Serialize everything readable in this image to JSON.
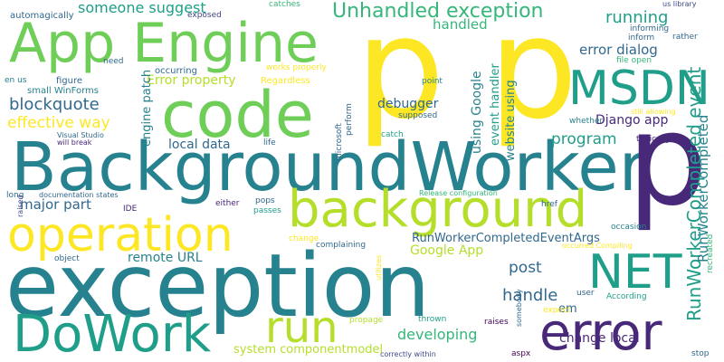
{
  "palette": {
    "yellow": "#fde725",
    "lime": "#b5de2b",
    "green": "#6ece58",
    "teal_green": "#35b779",
    "teal": "#1f9e89",
    "blue_teal": "#26828e",
    "blue": "#31688e",
    "indigo": "#3e4989",
    "purple": "#482878",
    "dark": "#440154"
  },
  "words": [
    {
      "text": "BackgroundWorker",
      "color": "blue_teal"
    },
    {
      "text": "exception",
      "color": "blue_teal"
    },
    {
      "text": "p",
      "color": "yellow"
    },
    {
      "text": "p",
      "color": "yellow"
    },
    {
      "text": "p",
      "color": "purple"
    },
    {
      "text": "code",
      "color": "green"
    },
    {
      "text": "App Engine",
      "color": "green"
    },
    {
      "text": "background",
      "color": "lime"
    },
    {
      "text": "operation",
      "color": "yellow"
    },
    {
      "text": "error",
      "color": "purple"
    },
    {
      "text": "DoWork",
      "color": "teal"
    },
    {
      "text": "run",
      "color": "lime"
    },
    {
      "text": "NET",
      "color": "teal"
    },
    {
      "text": "MSDN",
      "color": "teal"
    },
    {
      "text": "Unhandled exception",
      "color": "teal_green"
    },
    {
      "text": "RunWorkerCompleted event",
      "color": "teal"
    },
    {
      "text": "running",
      "color": "teal"
    },
    {
      "text": "program",
      "color": "teal"
    },
    {
      "text": "post",
      "color": "blue"
    },
    {
      "text": "handle",
      "color": "blue"
    },
    {
      "text": "developing",
      "color": "teal_green"
    },
    {
      "text": "blockquote",
      "color": "blue"
    },
    {
      "text": "effective way",
      "color": "yellow"
    },
    {
      "text": "someone suggest",
      "color": "teal"
    },
    {
      "text": "handled",
      "color": "teal_green"
    },
    {
      "text": "error dialog",
      "color": "blue"
    },
    {
      "text": "Django app",
      "color": "purple"
    },
    {
      "text": "Error property",
      "color": "lime"
    },
    {
      "text": "engine patch",
      "color": "blue_teal"
    },
    {
      "text": "local data",
      "color": "blue"
    },
    {
      "text": "major part",
      "color": "blue"
    },
    {
      "text": "remote URL",
      "color": "blue_teal"
    },
    {
      "text": "system componentmodel",
      "color": "lime"
    },
    {
      "text": "change local",
      "color": "purple"
    },
    {
      "text": "Google App",
      "color": "lime"
    },
    {
      "text": "RunWorkerCompletedEventArgs",
      "color": "blue"
    },
    {
      "text": "RunWorkerCompleted",
      "color": "blue_teal"
    },
    {
      "text": "using Google",
      "color": "blue_teal"
    },
    {
      "text": "event handler",
      "color": "teal"
    },
    {
      "text": "website using",
      "color": "blue_teal"
    },
    {
      "text": "debugger",
      "color": "blue"
    },
    {
      "text": "em",
      "color": "blue"
    },
    {
      "text": "Regardless",
      "color": "yellow"
    },
    {
      "text": "occurring",
      "color": "blue"
    },
    {
      "text": "figure",
      "color": "blue"
    },
    {
      "text": "small WinForms",
      "color": "blue_teal"
    },
    {
      "text": "en us",
      "color": "blue_teal"
    },
    {
      "text": "automagically",
      "color": "blue"
    },
    {
      "text": "exposed",
      "color": "indigo"
    },
    {
      "text": "catches",
      "color": "teal_green"
    },
    {
      "text": "us library",
      "color": "indigo"
    },
    {
      "text": "informing",
      "color": "blue"
    },
    {
      "text": "inform",
      "color": "blue"
    },
    {
      "text": "rather",
      "color": "blue"
    },
    {
      "text": "file open",
      "color": "teal_green"
    },
    {
      "text": "need",
      "color": "blue"
    },
    {
      "text": "works properly",
      "color": "yellow"
    },
    {
      "text": "point",
      "color": "blue_teal"
    },
    {
      "text": "supposed",
      "color": "blue"
    },
    {
      "text": "microsoft",
      "color": "blue"
    },
    {
      "text": "perform",
      "color": "blue"
    },
    {
      "text": "whether",
      "color": "blue_teal"
    },
    {
      "text": "still allowing",
      "color": "yellow"
    },
    {
      "text": "Visual Studio",
      "color": "blue"
    },
    {
      "text": "will break",
      "color": "purple"
    },
    {
      "text": "life",
      "color": "blue"
    },
    {
      "text": "catch",
      "color": "teal"
    },
    {
      "text": "typically",
      "color": "purple"
    },
    {
      "text": "long",
      "color": "blue"
    },
    {
      "text": "documentation states",
      "color": "blue"
    },
    {
      "text": "raised",
      "color": "indigo"
    },
    {
      "text": "pops",
      "color": "blue"
    },
    {
      "text": "Release configuration",
      "color": "teal_green"
    },
    {
      "text": "href",
      "color": "blue"
    },
    {
      "text": "IDE",
      "color": "purple"
    },
    {
      "text": "either",
      "color": "purple"
    },
    {
      "text": "passes",
      "color": "teal"
    },
    {
      "text": "occasion",
      "color": "blue_teal"
    },
    {
      "text": "recreated",
      "color": "teal_green"
    },
    {
      "text": "throws occasional",
      "color": "purple"
    },
    {
      "text": "change",
      "color": "yellow"
    },
    {
      "text": "complaining",
      "color": "blue"
    },
    {
      "text": "occurred Compiling",
      "color": "yellow"
    },
    {
      "text": "object",
      "color": "blue"
    },
    {
      "text": "utilizes",
      "color": "yellow"
    },
    {
      "text": "user",
      "color": "blue"
    },
    {
      "text": "According",
      "color": "teal"
    },
    {
      "text": "expect",
      "color": "yellow"
    },
    {
      "text": "propage",
      "color": "lime"
    },
    {
      "text": "thrown",
      "color": "teal"
    },
    {
      "text": "raises",
      "color": "dark"
    },
    {
      "text": "somebody",
      "color": "blue"
    },
    {
      "text": "aspx",
      "color": "dark"
    },
    {
      "text": "correctly within",
      "color": "indigo"
    },
    {
      "text": "stop",
      "color": "blue"
    }
  ]
}
